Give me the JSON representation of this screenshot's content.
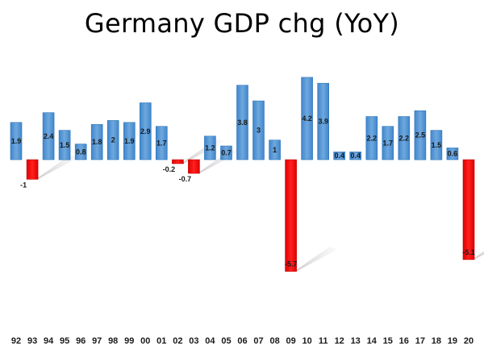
{
  "chart_data": {
    "type": "bar",
    "title": "Germany GDP chg (YoY)",
    "xlabel": "",
    "ylabel": "",
    "categories": [
      "92",
      "93",
      "94",
      "95",
      "96",
      "97",
      "98",
      "99",
      "00",
      "01",
      "02",
      "03",
      "04",
      "05",
      "06",
      "07",
      "08",
      "09",
      "10",
      "11",
      "12",
      "13",
      "14",
      "15",
      "16",
      "17",
      "18",
      "19",
      "20"
    ],
    "values": [
      1.9,
      -1,
      2.4,
      1.5,
      0.8,
      1.8,
      2,
      1.9,
      2.9,
      1.7,
      -0.2,
      -0.7,
      1.2,
      0.7,
      3.8,
      3,
      1,
      -5.7,
      4.2,
      3.9,
      0.4,
      0.4,
      2.2,
      1.7,
      2.2,
      2.5,
      1.5,
      0.6,
      -5.1
    ],
    "data_labels": [
      "1.9",
      "-1",
      "2.4",
      "1.5",
      "0.8",
      "1.8",
      "2",
      "1.9",
      "2.9",
      "1.7",
      "-0.2",
      "-0.7",
      "1.2",
      "0.7",
      "3.8",
      "3",
      "1",
      "-5.7",
      "4.2",
      "3.9",
      "0.4",
      "0.4",
      "2.2",
      "1.7",
      "2.2",
      "2.5",
      "1.5",
      "0.6",
      "-5.1"
    ],
    "ylim": [
      -5.7,
      4.2
    ],
    "grid": false,
    "legend": "none",
    "colors": {
      "positive": "#5B9BD5",
      "positive_edge": "#2E75B6",
      "negative": "#FF0000",
      "negative_edge": "#C00000",
      "shadow": "#D0D0D0"
    }
  }
}
